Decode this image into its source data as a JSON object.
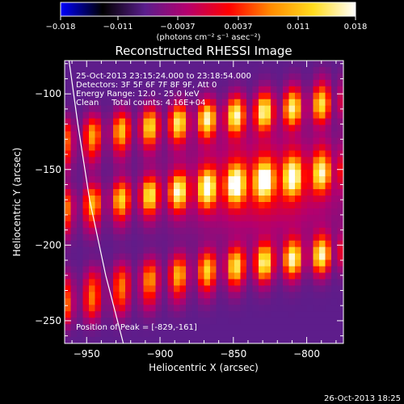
{
  "chart_data": {
    "type": "heatmap",
    "title": "Reconstructed RHESSI Image",
    "xlabel": "Heliocentric X (arcsec)",
    "ylabel": "Heliocentric Y (arcsec)",
    "xlim": [
      -965,
      -775
    ],
    "ylim": [
      -265,
      -78
    ],
    "x_ticks": [
      -950,
      -900,
      -850,
      -800
    ],
    "y_ticks": [
      -100,
      -150,
      -200,
      -250
    ],
    "colorbar": {
      "min": -0.018,
      "max": 0.018,
      "ticks": [
        -0.018,
        -0.011,
        -0.0037,
        0.0037,
        0.011,
        0.018
      ],
      "tick_labels": [
        "−0.018",
        "−0.011",
        "−0.0037",
        "0.0037",
        "0.011",
        "0.018"
      ],
      "units_label": "(photons cm⁻² s⁻¹ asec⁻²)",
      "colormap": [
        "#0000ff",
        "#000000",
        "#5a1e8c",
        "#b4006e",
        "#ff0000",
        "#ff8c00",
        "#ffdc1e",
        "#ffffff"
      ]
    },
    "annotations": {
      "time_range": "25-Oct-2013 23:15:24.000 to 23:18:54.000",
      "detectors": "Detectors: 3F 5F 6F 7F 8F 9F, Att 0",
      "energy_range": "Energy Range: 12.0 - 25.0 keV",
      "clean_counts": "Clean     Total counts: 4.16E+04",
      "peak": "Position of Peak = [-829,-161]"
    },
    "peak": {
      "x": -829,
      "y": -161
    },
    "bright_bands_y": [
      -118,
      -163,
      -220
    ],
    "limb_curve": [
      [
        -962,
        -78
      ],
      [
        -956,
        -120
      ],
      [
        -948,
        -170
      ],
      [
        -937,
        -220
      ],
      [
        -925,
        -265
      ]
    ]
  },
  "footer": {
    "timestamp": "26-Oct-2013 18:25"
  }
}
